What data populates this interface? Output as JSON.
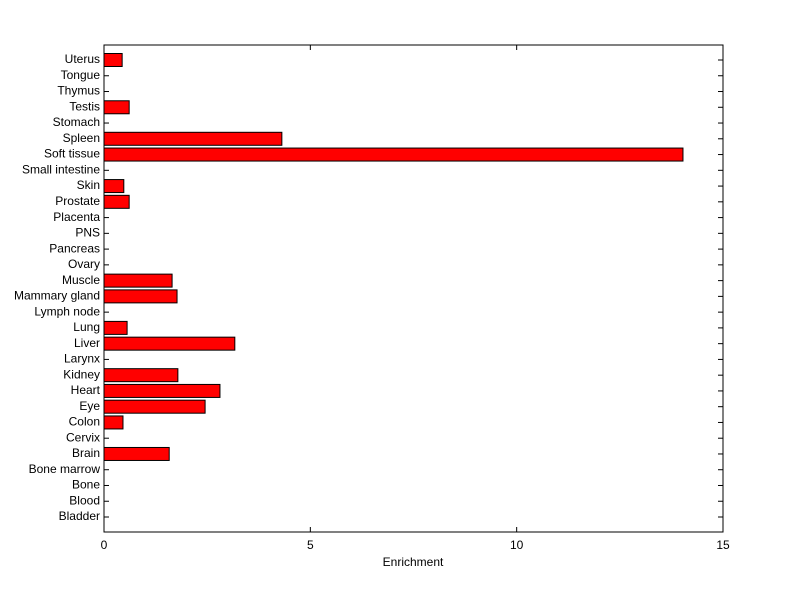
{
  "chart_data": {
    "type": "barh",
    "xlabel": "Enrichment",
    "categories": [
      "Bladder",
      "Blood",
      "Bone",
      "Bone marrow",
      "Brain",
      "Cervix",
      "Colon",
      "Eye",
      "Heart",
      "Kidney",
      "Larynx",
      "Liver",
      "Lung",
      "Lymph node",
      "Mammary gland",
      "Muscle",
      "Ovary",
      "Pancreas",
      "PNS",
      "Placenta",
      "Prostate",
      "Skin",
      "Small intestine",
      "Soft tissue",
      "Spleen",
      "Stomach",
      "Testis",
      "Thymus",
      "Tongue",
      "Uterus"
    ],
    "values": [
      0,
      0,
      0,
      0,
      1.58,
      0,
      0.46,
      2.45,
      2.81,
      1.79,
      0,
      3.17,
      0.56,
      0,
      1.77,
      1.65,
      0,
      0,
      0,
      0,
      0.61,
      0.48,
      0,
      14.03,
      4.31,
      0,
      0.61,
      0,
      0,
      0.44
    ],
    "color": "#ff0000",
    "xlim": [
      0,
      15
    ],
    "xticks": [
      0,
      5,
      10,
      15
    ]
  }
}
